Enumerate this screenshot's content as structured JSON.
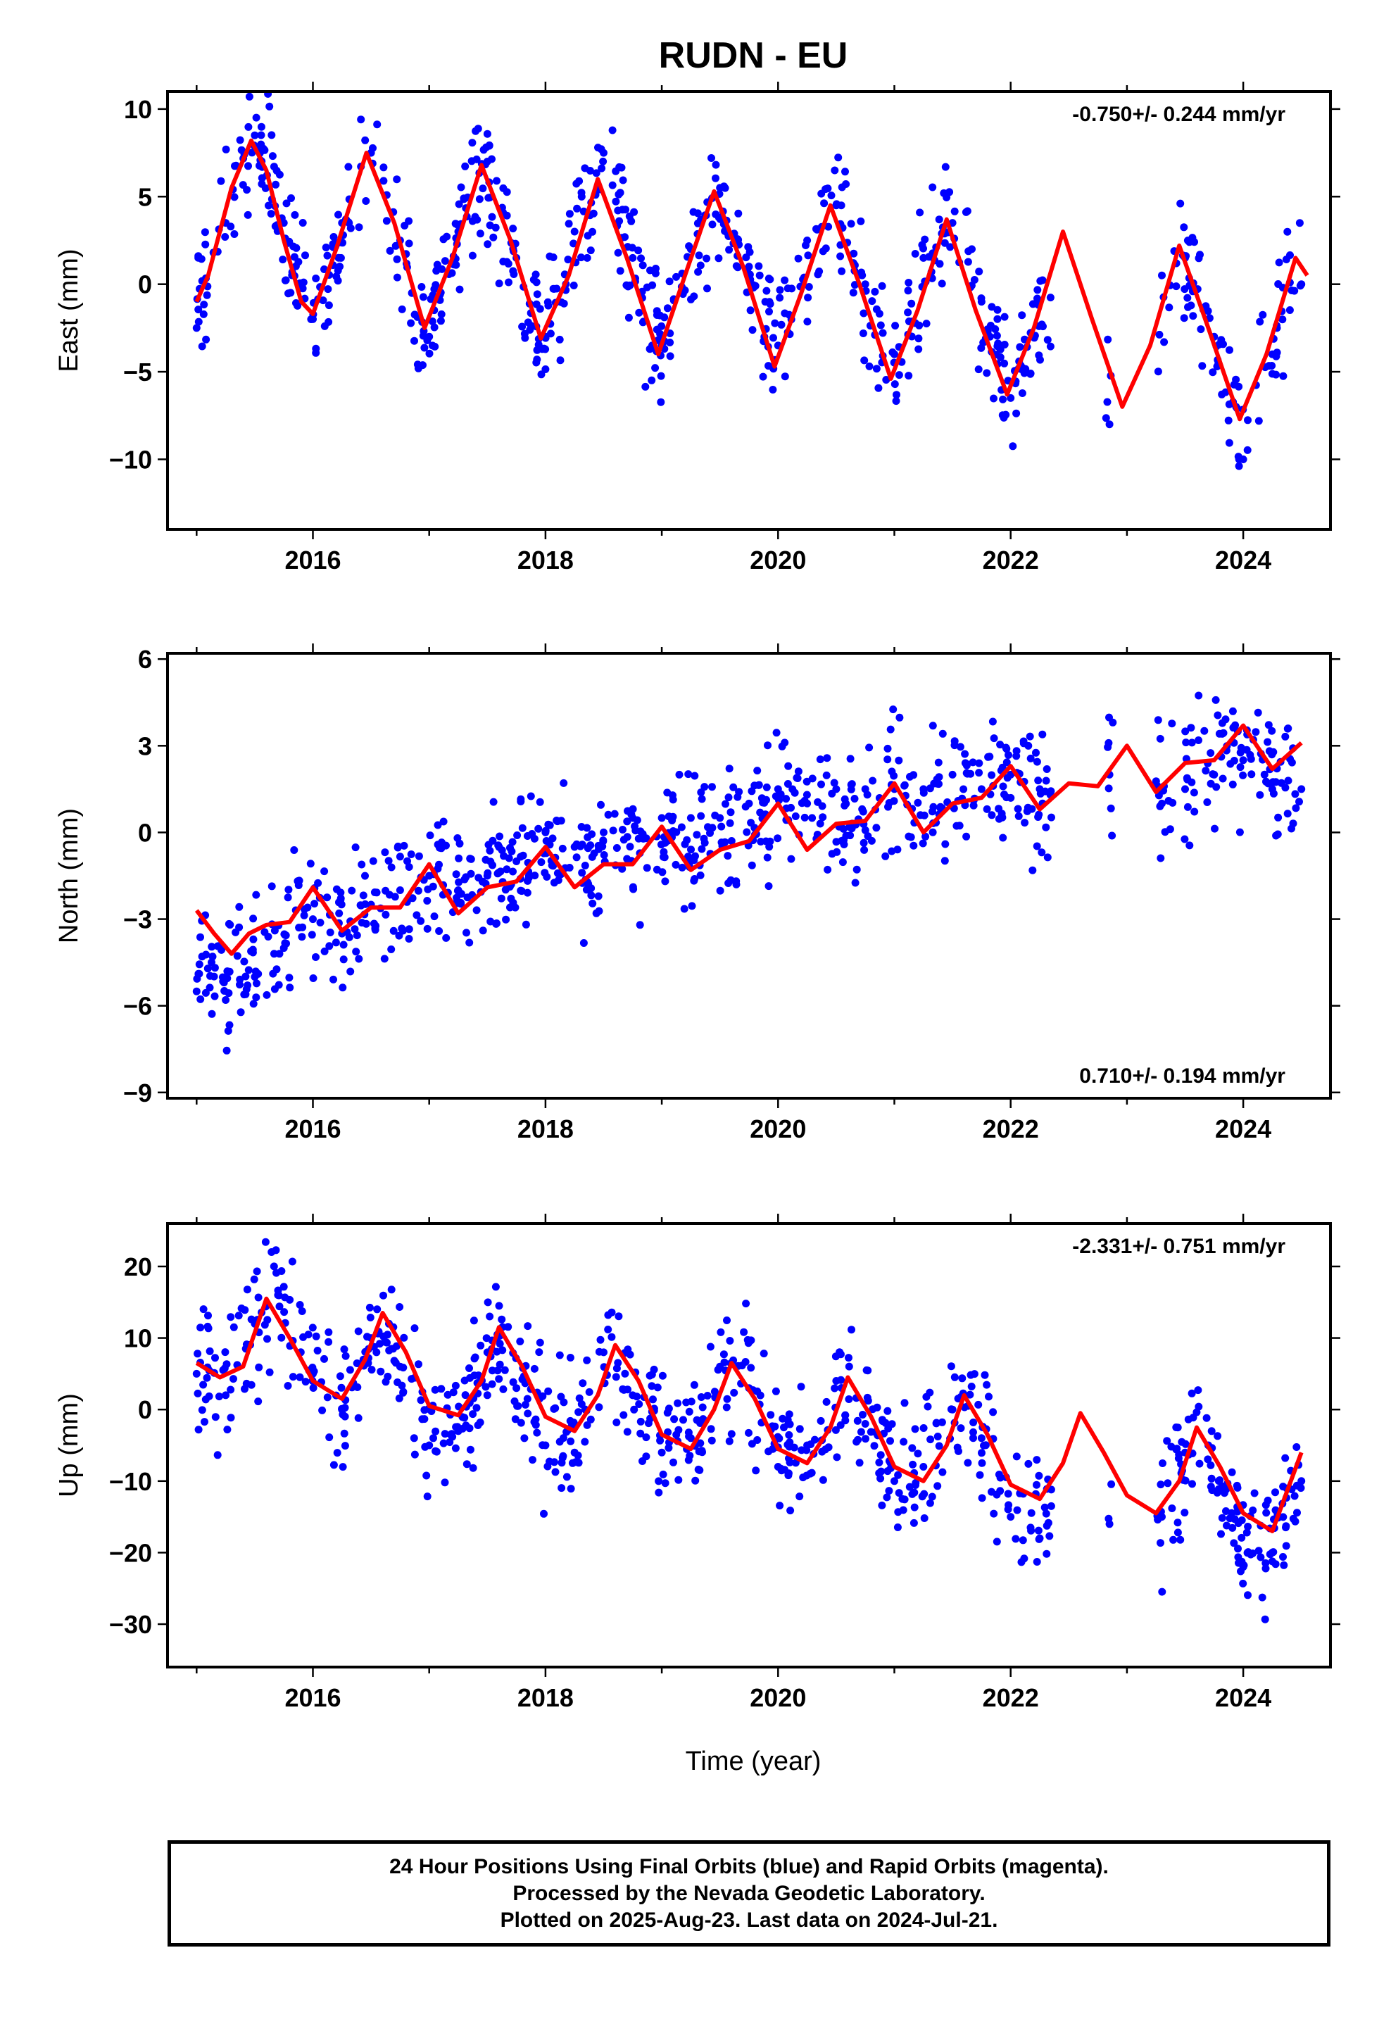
{
  "title": "RUDN - EU",
  "xlabel": "Time (year)",
  "footer": {
    "line1": "24 Hour Positions Using Final Orbits (blue) and Rapid Orbits (magenta).",
    "line2": "Processed by the Nevada Geodetic Laboratory.",
    "line3": "Plotted on 2025-Aug-23. Last data on 2024-Jul-21."
  },
  "colors": {
    "data": "#0000ff",
    "model": "#ff0000",
    "frame": "#000000"
  },
  "chart_data": [
    {
      "type": "scatter",
      "panel": "east",
      "ylabel": "East (mm)",
      "rate_text": "-0.750+/- 0.244 mm/yr",
      "rate_position": "top-right",
      "xlim": [
        2014.75,
        2024.75
      ],
      "ylim": [
        -14,
        11
      ],
      "xticks": [
        2016,
        2018,
        2020,
        2022,
        2024
      ],
      "yticks": [
        10,
        5,
        0,
        -5,
        -10
      ],
      "ytick_labels": [
        "10",
        "5",
        "0",
        "−5",
        "−10"
      ],
      "series": [
        {
          "kind": "data_points",
          "color": "#0000ff",
          "x": [
            2015.0,
            2015.25,
            2015.5,
            2015.75,
            2016.0,
            2016.25,
            2016.5,
            2016.75,
            2017.0,
            2017.25,
            2017.5,
            2017.75,
            2018.0,
            2018.25,
            2018.5,
            2018.75,
            2019.0,
            2019.25,
            2019.5,
            2019.75,
            2020.0,
            2020.25,
            2020.5,
            2020.75,
            2021.0,
            2021.25,
            2021.5,
            2021.75,
            2022.0,
            2022.25,
            2022.85,
            2023.3,
            2023.5,
            2023.75,
            2024.0,
            2024.25,
            2024.5
          ],
          "y": [
            -2.5,
            3.5,
            8.5,
            3.5,
            -2.0,
            3.5,
            7.5,
            2.5,
            -3.0,
            3.0,
            7.0,
            1.5,
            -3.0,
            3.0,
            7.5,
            1.5,
            -3.5,
            2.0,
            5.5,
            1.0,
            -3.5,
            2.5,
            4.5,
            0.0,
            -4.0,
            1.5,
            3.5,
            -1.0,
            -6.5,
            -1.0,
            -8.0,
            0.5,
            1.5,
            -3.0,
            -10.0,
            -4.0,
            0.0
          ]
        },
        {
          "kind": "model_fit",
          "color": "#ff0000",
          "x": [
            2015.0,
            2015.1,
            2015.2,
            2015.3,
            2015.47,
            2015.6,
            2015.75,
            2015.9,
            2016.0,
            2016.2,
            2016.46,
            2016.7,
            2016.96,
            2017.2,
            2017.45,
            2017.7,
            2017.96,
            2018.2,
            2018.45,
            2018.7,
            2018.97,
            2019.2,
            2019.45,
            2019.7,
            2019.97,
            2020.2,
            2020.45,
            2020.7,
            2020.97,
            2021.2,
            2021.45,
            2021.7,
            2021.97,
            2022.2,
            2022.45,
            2022.7,
            2022.96,
            2023.2,
            2023.45,
            2023.7,
            2023.97,
            2024.2,
            2024.45,
            2024.55
          ],
          "y": [
            -1.0,
            0.5,
            3.0,
            5.5,
            8.2,
            6.5,
            2.5,
            -1.0,
            -1.7,
            2.0,
            7.5,
            3.5,
            -2.5,
            1.5,
            6.8,
            2.5,
            -3.1,
            0.5,
            6.0,
            1.5,
            -4.0,
            0.5,
            5.3,
            1.0,
            -4.7,
            -0.5,
            4.5,
            0.0,
            -5.4,
            -1.5,
            3.7,
            -1.5,
            -6.3,
            -2.5,
            3.0,
            -2.0,
            -7.0,
            -3.5,
            2.2,
            -2.5,
            -7.7,
            -4.0,
            1.5,
            0.5
          ]
        }
      ]
    },
    {
      "type": "scatter",
      "panel": "north",
      "ylabel": "North (mm)",
      "rate_text": "0.710+/- 0.194 mm/yr",
      "rate_position": "bottom-right",
      "xlim": [
        2014.75,
        2024.75
      ],
      "ylim": [
        -9.2,
        6.2
      ],
      "xticks": [
        2016,
        2018,
        2020,
        2022,
        2024
      ],
      "yticks": [
        6,
        3,
        0,
        -3,
        -6,
        -9
      ],
      "ytick_labels": [
        "6",
        "3",
        "0",
        "−3",
        "−6",
        "−9"
      ],
      "series": [
        {
          "kind": "data_points",
          "color": "#0000ff",
          "x": [
            2015.0,
            2015.25,
            2015.5,
            2015.75,
            2016.0,
            2016.25,
            2016.5,
            2016.75,
            2017.0,
            2017.25,
            2017.5,
            2017.75,
            2018.0,
            2018.25,
            2018.5,
            2018.75,
            2019.0,
            2019.25,
            2019.5,
            2019.75,
            2020.0,
            2020.25,
            2020.5,
            2020.75,
            2021.0,
            2021.25,
            2021.5,
            2021.75,
            2022.0,
            2022.25,
            2022.85,
            2023.3,
            2023.5,
            2023.75,
            2024.0,
            2024.25,
            2024.5
          ],
          "y": [
            -5.5,
            -5.8,
            -5.0,
            -4.0,
            -3.0,
            -3.5,
            -2.5,
            -2.0,
            -1.5,
            -2.0,
            -1.5,
            -1.0,
            0.0,
            -0.5,
            0.0,
            0.5,
            0.5,
            0.5,
            0.5,
            1.0,
            1.5,
            1.0,
            1.5,
            1.5,
            1.5,
            1.5,
            2.0,
            1.5,
            2.0,
            1.5,
            2.0,
            1.0,
            1.5,
            2.0,
            2.5,
            1.5,
            1.5
          ]
        },
        {
          "kind": "model_fit",
          "color": "#ff0000",
          "x": [
            2015.0,
            2015.15,
            2015.3,
            2015.45,
            2015.6,
            2015.8,
            2016.0,
            2016.25,
            2016.5,
            2016.75,
            2017.0,
            2017.25,
            2017.5,
            2017.75,
            2018.0,
            2018.25,
            2018.5,
            2018.75,
            2019.0,
            2019.25,
            2019.5,
            2019.75,
            2020.0,
            2020.25,
            2020.5,
            2020.75,
            2021.0,
            2021.25,
            2021.5,
            2021.75,
            2022.0,
            2022.25,
            2022.5,
            2022.75,
            2023.0,
            2023.25,
            2023.5,
            2023.75,
            2024.0,
            2024.25,
            2024.5
          ],
          "y": [
            -2.7,
            -3.5,
            -4.2,
            -3.5,
            -3.2,
            -3.1,
            -1.9,
            -3.4,
            -2.6,
            -2.6,
            -1.1,
            -2.8,
            -1.9,
            -1.7,
            -0.5,
            -1.9,
            -1.1,
            -1.1,
            0.2,
            -1.3,
            -0.6,
            -0.3,
            1.0,
            -0.6,
            0.3,
            0.4,
            1.7,
            0.0,
            1.0,
            1.2,
            2.3,
            0.8,
            1.7,
            1.6,
            3.0,
            1.4,
            2.4,
            2.5,
            3.7,
            2.2,
            3.1
          ]
        }
      ]
    },
    {
      "type": "scatter",
      "panel": "up",
      "ylabel": "Up (mm)",
      "rate_text": "-2.331+/- 0.751 mm/yr",
      "rate_position": "top-right",
      "xlim": [
        2014.75,
        2024.75
      ],
      "ylim": [
        -36,
        26
      ],
      "xticks": [
        2016,
        2018,
        2020,
        2022,
        2024
      ],
      "yticks": [
        20,
        10,
        0,
        -10,
        -20,
        -30
      ],
      "ytick_labels": [
        "20",
        "10",
        "0",
        "−10",
        "−20",
        "−30"
      ],
      "series": [
        {
          "kind": "data_points",
          "color": "#0000ff",
          "x": [
            2015.0,
            2015.25,
            2015.5,
            2015.7,
            2016.0,
            2016.25,
            2016.5,
            2016.75,
            2017.0,
            2017.25,
            2017.5,
            2017.75,
            2018.0,
            2018.25,
            2018.5,
            2018.75,
            2019.0,
            2019.25,
            2019.5,
            2019.75,
            2020.0,
            2020.25,
            2020.5,
            2020.75,
            2021.0,
            2021.25,
            2021.5,
            2021.75,
            2022.0,
            2022.25,
            2022.85,
            2023.3,
            2023.5,
            2023.7,
            2024.0,
            2024.25,
            2024.5
          ],
          "y": [
            5.0,
            2.0,
            12.0,
            16.0,
            5.0,
            0.0,
            10.0,
            6.0,
            -5.0,
            -3.0,
            8.0,
            3.0,
            -5.0,
            -6.0,
            8.0,
            2.0,
            -6.0,
            -4.0,
            6.0,
            3.0,
            -8.0,
            -5.0,
            4.0,
            -2.0,
            -10.0,
            -8.0,
            0.0,
            -4.0,
            -15.0,
            -18.0,
            -16.0,
            -15.0,
            -6.0,
            -5.0,
            -22.0,
            -20.0,
            -10.0
          ]
        },
        {
          "kind": "model_fit",
          "color": "#ff0000",
          "x": [
            2015.0,
            2015.2,
            2015.4,
            2015.6,
            2015.8,
            2016.0,
            2016.25,
            2016.45,
            2016.6,
            2016.8,
            2017.0,
            2017.25,
            2017.45,
            2017.6,
            2017.8,
            2018.0,
            2018.25,
            2018.45,
            2018.6,
            2018.8,
            2019.0,
            2019.25,
            2019.45,
            2019.6,
            2019.8,
            2020.0,
            2020.25,
            2020.45,
            2020.6,
            2020.8,
            2021.0,
            2021.25,
            2021.45,
            2021.6,
            2021.8,
            2022.0,
            2022.25,
            2022.45,
            2022.6,
            2022.8,
            2023.0,
            2023.25,
            2023.45,
            2023.6,
            2023.8,
            2024.0,
            2024.25,
            2024.5
          ],
          "y": [
            6.5,
            4.5,
            6.0,
            15.5,
            10.0,
            4.0,
            1.5,
            7.0,
            13.5,
            8.0,
            0.5,
            -0.8,
            4.0,
            11.5,
            6.0,
            -1.0,
            -3.0,
            2.0,
            9.0,
            4.0,
            -3.5,
            -5.5,
            0.0,
            6.5,
            1.5,
            -5.5,
            -7.5,
            -2.5,
            4.5,
            -1.0,
            -8.0,
            -10.0,
            -5.0,
            2.0,
            -3.5,
            -10.5,
            -12.5,
            -7.5,
            -0.5,
            -6.0,
            -12.0,
            -14.5,
            -10.0,
            -2.5,
            -8.0,
            -14.5,
            -17.0,
            -6.0
          ]
        }
      ]
    }
  ]
}
